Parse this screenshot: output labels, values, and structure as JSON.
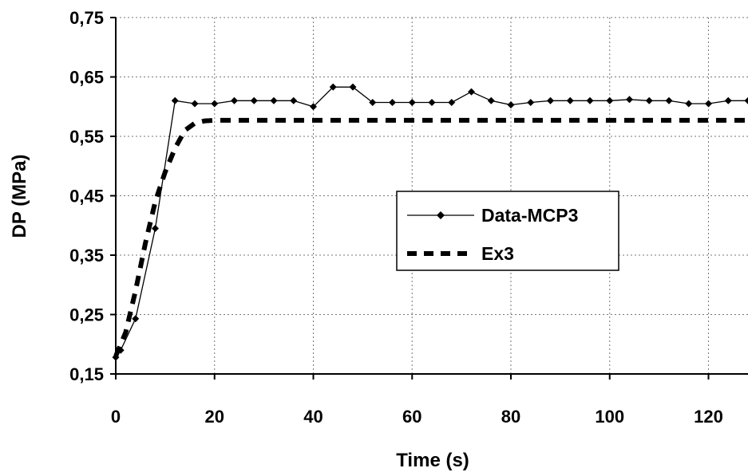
{
  "chart_data": {
    "type": "line",
    "xlabel": "Time (s)",
    "ylabel": "DP (MPa)",
    "xlim": [
      0,
      128
    ],
    "ylim": [
      0.15,
      0.75
    ],
    "x_ticks": [
      0,
      20,
      40,
      60,
      80,
      100,
      120
    ],
    "x_tick_labels": [
      "0",
      "20",
      "40",
      "60",
      "80",
      "100",
      "120"
    ],
    "y_ticks": [
      0.15,
      0.25,
      0.35,
      0.45,
      0.55,
      0.65,
      0.75
    ],
    "y_tick_labels": [
      "0,15",
      "0,25",
      "0,35",
      "0,45",
      "0,55",
      "0,65",
      "0,75"
    ],
    "grid": "dotted",
    "legend_position": "center-right",
    "series": [
      {
        "name": "Data-MCP3",
        "style": "solid line with diamond markers",
        "color": "#000000",
        "x": [
          0,
          1,
          4,
          8,
          12,
          16,
          20,
          24,
          28,
          32,
          36,
          40,
          44,
          48,
          52,
          56,
          60,
          64,
          68,
          72,
          76,
          80,
          84,
          88,
          92,
          96,
          100,
          104,
          108,
          112,
          116,
          120,
          124,
          128
        ],
        "y": [
          0.178,
          0.19,
          0.243,
          0.395,
          0.61,
          0.605,
          0.605,
          0.61,
          0.61,
          0.61,
          0.61,
          0.6,
          0.633,
          0.633,
          0.607,
          0.607,
          0.607,
          0.607,
          0.607,
          0.625,
          0.61,
          0.603,
          0.607,
          0.61,
          0.61,
          0.61,
          0.61,
          0.612,
          0.61,
          0.61,
          0.605,
          0.605,
          0.61,
          0.61
        ]
      },
      {
        "name": "Ex3",
        "style": "thick dashed line",
        "color": "#000000",
        "x": [
          0,
          2,
          4,
          6,
          8,
          10,
          12,
          14,
          16,
          18,
          20,
          30,
          40,
          60,
          80,
          100,
          128
        ],
        "y": [
          0.18,
          0.22,
          0.29,
          0.37,
          0.44,
          0.49,
          0.53,
          0.56,
          0.572,
          0.576,
          0.577,
          0.577,
          0.577,
          0.577,
          0.577,
          0.577,
          0.577
        ]
      }
    ]
  }
}
